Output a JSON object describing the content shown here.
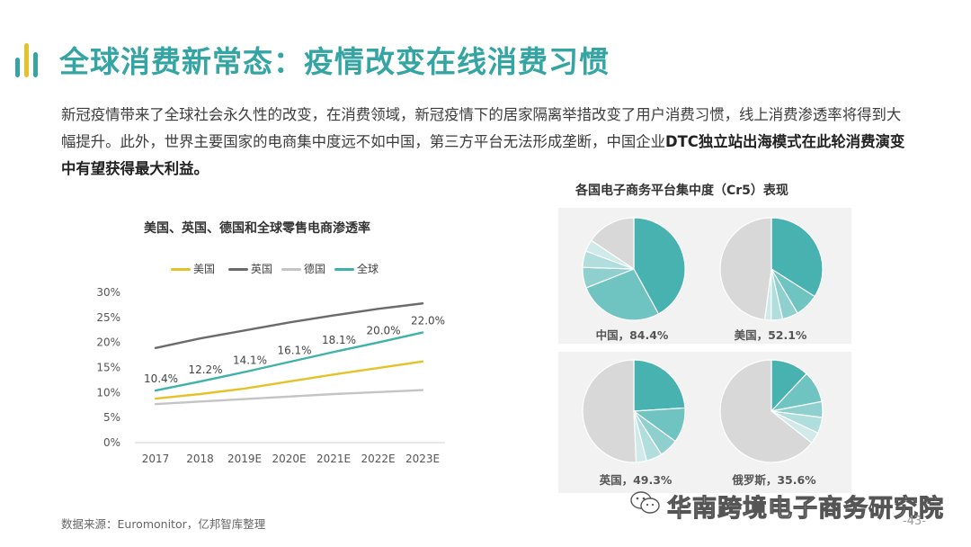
{
  "header": {
    "title": "全球消费新常态：疫情改变在线消费习惯"
  },
  "intro": {
    "text_plain": "新冠疫情带来了全球社会永久性的改变，在消费领域，新冠疫情下的居家隔离举措改变了用户消费习惯，线上消费渗透率将得到大幅提升。此外，世界主要国家的电商集中度远不如中国，第三方平台无法形成垄断，中国企业",
    "text_bold": "DTC独立站出海模式在此轮消费演变中有望获得最大利益。"
  },
  "chart_data": [
    {
      "type": "line",
      "title": "美国、英国、德国和全球零售电商渗透率",
      "categories": [
        "2017",
        "2018",
        "2019E",
        "2020E",
        "2021E",
        "2022E",
        "2023E"
      ],
      "ylim": [
        0,
        30
      ],
      "yticks": [
        "0%",
        "5%",
        "10%",
        "15%",
        "20%",
        "25%",
        "30%"
      ],
      "series": [
        {
          "name": "美国",
          "color": "#e6c229",
          "values": [
            8.8,
            9.7,
            10.8,
            12.2,
            13.6,
            14.9,
            16.2
          ]
        },
        {
          "name": "英国",
          "color": "#6b6b6b",
          "values": [
            18.9,
            20.8,
            22.4,
            24.0,
            25.4,
            26.7,
            27.8
          ]
        },
        {
          "name": "德国",
          "color": "#c4c4c4",
          "values": [
            7.7,
            8.2,
            8.7,
            9.2,
            9.7,
            10.1,
            10.5
          ]
        },
        {
          "name": "全球",
          "color": "#3fb1ab",
          "values": [
            10.4,
            12.2,
            14.1,
            16.1,
            18.1,
            20.0,
            22.0
          ],
          "labels": [
            "10.4%",
            "12.2%",
            "14.1%",
            "16.1%",
            "18.1%",
            "20.0%",
            "22.0%"
          ]
        }
      ],
      "grid": false,
      "legend": "top"
    },
    {
      "type": "pie",
      "title": "各国电子商务平台集中度（Cr5）表现",
      "pies": [
        {
          "label": "中国，84.4%",
          "cr5": 84.4,
          "slices": [
            42.0,
            27.0,
            6.5,
            5.2,
            3.7
          ],
          "other": 15.6
        },
        {
          "label": "美国，52.1%",
          "cr5": 52.1,
          "slices": [
            34.0,
            7.5,
            5.0,
            3.6,
            2.0
          ],
          "other": 47.9
        },
        {
          "label": "英国，49.3%",
          "cr5": 49.3,
          "slices": [
            24.0,
            11.0,
            6.0,
            5.0,
            3.3
          ],
          "other": 50.7
        },
        {
          "label": "俄罗斯，35.6%",
          "cr5": 35.6,
          "slices": [
            12.0,
            10.0,
            5.0,
            5.0,
            3.6
          ],
          "other": 64.4
        }
      ],
      "slice_colors": [
        "#48b2b0",
        "#6fc3c1",
        "#8fd0ce",
        "#b0dedc",
        "#cfeae9"
      ],
      "other_color": "#d8d8d8"
    }
  ],
  "footer": {
    "source": "数据来源：Euromonitor，亿邦智库整理",
    "watermark": "华南跨境电子商务研究院",
    "page_number": "-43-"
  },
  "colors": {
    "accent": "#35a5a3",
    "logo_bars": [
      "#35a5a3",
      "#e6c229",
      "#35a5a3"
    ]
  }
}
